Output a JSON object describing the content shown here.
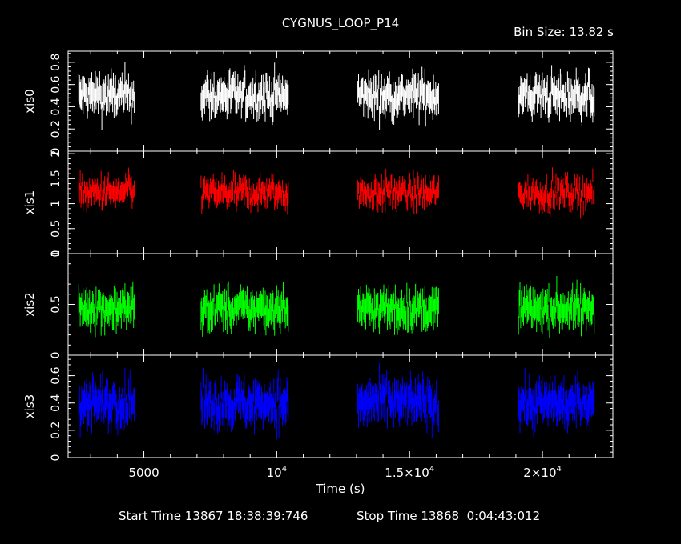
{
  "header": {
    "title": "CYGNUS_LOOP_P14",
    "bin_size": "Bin Size: 13.82 s"
  },
  "footer": {
    "start_time": "Start Time 13867 18:38:39:746",
    "stop_time": "Stop Time 13868  0:04:43:012"
  },
  "colors": {
    "xis0": "#ffffff",
    "xis1": "#ff0000",
    "xis2": "#00ff00",
    "xis3": "#0000ff",
    "axes": "#ffffff",
    "background": "#000000"
  },
  "chart_data": {
    "type": "scatter",
    "subtype": "light-curve with error bars, stacked panels sharing the time axis",
    "xlabel": "Time (s)",
    "xlim": [
      2150,
      22650
    ],
    "x_ticks": [
      {
        "value": 5000,
        "label": "5000"
      },
      {
        "value": 10000,
        "label": "10",
        "exp": "4"
      },
      {
        "value": 15000,
        "label": "1.5×10",
        "exp": "4"
      },
      {
        "value": 20000,
        "label": "2×10",
        "exp": "4"
      }
    ],
    "time_segments": [
      [
        2550,
        4650
      ],
      [
        7150,
        10450
      ],
      [
        13050,
        16100
      ],
      [
        19100,
        21950
      ]
    ],
    "panels": [
      {
        "name": "xis0",
        "ylabel": "xis0",
        "color": "#ffffff",
        "ylim": [
          0,
          0.9
        ],
        "y_tick_labels": [
          "0",
          "0.2",
          "0.4",
          "0.6",
          "0.8"
        ],
        "y_ticks": [
          0,
          0.2,
          0.4,
          0.6,
          0.8
        ],
        "mean_rate": 0.5,
        "spread": 0.1,
        "error": 0.11
      },
      {
        "name": "xis1",
        "ylabel": "xis1",
        "color": "#ff0000",
        "ylim": [
          0,
          2.05
        ],
        "y_tick_labels": [
          "0",
          "0.5",
          "1",
          "1.5",
          "2"
        ],
        "y_ticks": [
          0,
          0.5,
          1,
          1.5,
          2
        ],
        "mean_rate": 1.22,
        "spread": 0.18,
        "error": 0.17
      },
      {
        "name": "xis2",
        "ylabel": "xis2",
        "color": "#00ff00",
        "ylim": [
          0,
          1.0
        ],
        "y_tick_labels": [
          "0",
          "0.5",
          "1"
        ],
        "y_ticks": [
          0,
          0.5,
          1
        ],
        "mean_rate": 0.46,
        "spread": 0.1,
        "error": 0.12
      },
      {
        "name": "xis3",
        "ylabel": "xis3",
        "color": "#0000ff",
        "ylim": [
          0,
          0.75
        ],
        "y_tick_labels": [
          "0",
          "0.2",
          "0.4",
          "0.6"
        ],
        "y_ticks": [
          0,
          0.2,
          0.4,
          0.6
        ],
        "mean_rate": 0.4,
        "spread": 0.09,
        "error": 0.1
      }
    ]
  }
}
